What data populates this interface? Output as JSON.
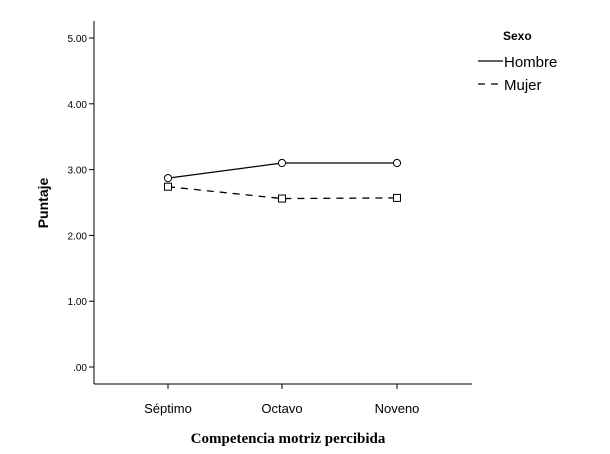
{
  "chart_data": {
    "type": "line",
    "title": "",
    "xlabel": "Competencia motriz percibida",
    "ylabel": "Puntaje",
    "categories": [
      "Séptimo",
      "Octavo",
      "Noveno"
    ],
    "ylim": [
      0,
      5
    ],
    "yticks": [
      0,
      1,
      2,
      3,
      4,
      5
    ],
    "ytick_labels": [
      ".00",
      "1.00",
      "2.00",
      "3.00",
      "4.00",
      "5.00"
    ],
    "grid": false,
    "legend": {
      "title": "Sexo",
      "placement": "top-right"
    },
    "series": [
      {
        "name": "Hombre",
        "values": [
          2.87,
          3.1,
          3.1
        ],
        "line": "solid",
        "marker": "circle",
        "color": "#000000"
      },
      {
        "name": "Mujer",
        "values": [
          2.74,
          2.56,
          2.57
        ],
        "line": "dashed",
        "marker": "square",
        "color": "#000000"
      }
    ]
  }
}
